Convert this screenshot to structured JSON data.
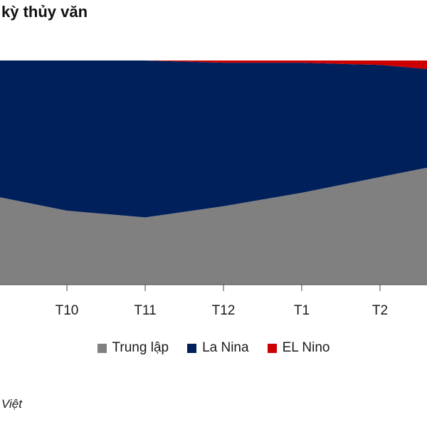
{
  "title": "kỳ thủy văn",
  "source": "Việt",
  "colors": {
    "neutral": "#808080",
    "lanina": "#00205b",
    "elnino": "#cc0000",
    "axis": "#444444"
  },
  "chart_data": {
    "type": "area",
    "stacked": true,
    "x": [
      "",
      "T10",
      "T11",
      "T12",
      "T1",
      "T2",
      ""
    ],
    "ylim": [
      0,
      100
    ],
    "grid": false,
    "legend_position": "bottom",
    "series": [
      {
        "name": "Trung lập",
        "color": "#808080",
        "values": [
          40,
          33,
          30,
          35,
          41,
          48,
          55
        ]
      },
      {
        "name": "La Nina",
        "color": "#00205b",
        "values": [
          60,
          67,
          70,
          64,
          58,
          50,
          40
        ]
      },
      {
        "name": "EL Nino",
        "color": "#cc0000",
        "values": [
          0,
          0,
          0,
          1,
          1,
          2,
          5
        ]
      }
    ]
  },
  "legend": [
    {
      "label": "Trung lập",
      "color": "#808080"
    },
    {
      "label": "La Nina",
      "color": "#00205b"
    },
    {
      "label": "EL Nino",
      "color": "#cc0000"
    }
  ]
}
